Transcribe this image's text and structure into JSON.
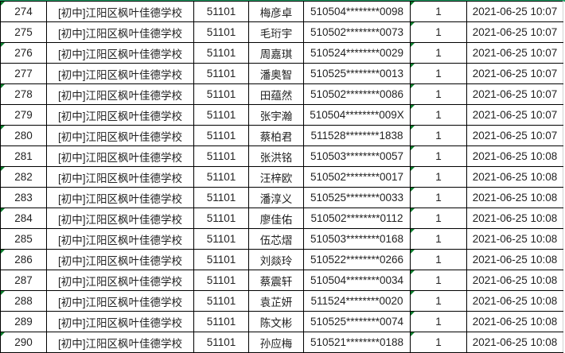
{
  "colors": {
    "selection": "#21a366",
    "error_marker": "#0a7d2c"
  },
  "rows": [
    {
      "no": "274",
      "school": "[初中]江阳区枫叶佳德学校",
      "code": "51101",
      "name": "梅彦卓",
      "id": "510504********0098",
      "count": "1",
      "time": "2021-06-25 10:07"
    },
    {
      "no": "275",
      "school": "[初中]江阳区枫叶佳德学校",
      "code": "51101",
      "name": "毛珩宇",
      "id": "510502********0073",
      "count": "1",
      "time": "2021-06-25 10:07"
    },
    {
      "no": "276",
      "school": "[初中]江阳区枫叶佳德学校",
      "code": "51101",
      "name": "周嘉琪",
      "id": "510524********0029",
      "count": "1",
      "time": "2021-06-25 10:07"
    },
    {
      "no": "277",
      "school": "[初中]江阳区枫叶佳德学校",
      "code": "51101",
      "name": "潘奥智",
      "id": "510525********0013",
      "count": "1",
      "time": "2021-06-25 10:07"
    },
    {
      "no": "278",
      "school": "[初中]江阳区枫叶佳德学校",
      "code": "51101",
      "name": "田蕴然",
      "id": "510502********0086",
      "count": "1",
      "time": "2021-06-25 10:07"
    },
    {
      "no": "279",
      "school": "[初中]江阳区枫叶佳德学校",
      "code": "51101",
      "name": "张宇瀚",
      "id": "510504********009X",
      "count": "1",
      "time": "2021-06-25 10:07"
    },
    {
      "no": "280",
      "school": "[初中]江阳区枫叶佳德学校",
      "code": "51101",
      "name": "蔡柏君",
      "id": "511528********1838",
      "count": "1",
      "time": "2021-06-25 10:07"
    },
    {
      "no": "281",
      "school": "[初中]江阳区枫叶佳德学校",
      "code": "51101",
      "name": "张洪铭",
      "id": "510503********0057",
      "count": "1",
      "time": "2021-06-25 10:08"
    },
    {
      "no": "282",
      "school": "[初中]江阳区枫叶佳德学校",
      "code": "51101",
      "name": "汪梓欧",
      "id": "510502********0017",
      "count": "1",
      "time": "2021-06-25 10:08"
    },
    {
      "no": "283",
      "school": "[初中]江阳区枫叶佳德学校",
      "code": "51101",
      "name": "潘淳义",
      "id": "510525********0033",
      "count": "1",
      "time": "2021-06-25 10:08"
    },
    {
      "no": "284",
      "school": "[初中]江阳区枫叶佳德学校",
      "code": "51101",
      "name": "廖佳佑",
      "id": "510502********0112",
      "count": "1",
      "time": "2021-06-25 10:08"
    },
    {
      "no": "285",
      "school": "[初中]江阳区枫叶佳德学校",
      "code": "51101",
      "name": "伍芯熠",
      "id": "510503********0168",
      "count": "1",
      "time": "2021-06-25 10:08"
    },
    {
      "no": "286",
      "school": "[初中]江阳区枫叶佳德学校",
      "code": "51101",
      "name": "刘燚玲",
      "id": "510522********0266",
      "count": "1",
      "time": "2021-06-25 10:08"
    },
    {
      "no": "287",
      "school": "[初中]江阳区枫叶佳德学校",
      "code": "51101",
      "name": "蔡震轩",
      "id": "510504********0034",
      "count": "1",
      "time": "2021-06-25 10:08"
    },
    {
      "no": "288",
      "school": "[初中]江阳区枫叶佳德学校",
      "code": "51101",
      "name": "袁芷妍",
      "id": "511524********0020",
      "count": "1",
      "time": "2021-06-25 10:08"
    },
    {
      "no": "289",
      "school": "[初中]江阳区枫叶佳德学校",
      "code": "51101",
      "name": "陈文彬",
      "id": "510525********0074",
      "count": "1",
      "time": "2021-06-25 10:08"
    },
    {
      "no": "290",
      "school": "[初中]江阳区枫叶佳德学校",
      "code": "51101",
      "name": "孙应梅",
      "id": "510521********0188",
      "count": "1",
      "time": "2021-06-25 10:08"
    }
  ]
}
